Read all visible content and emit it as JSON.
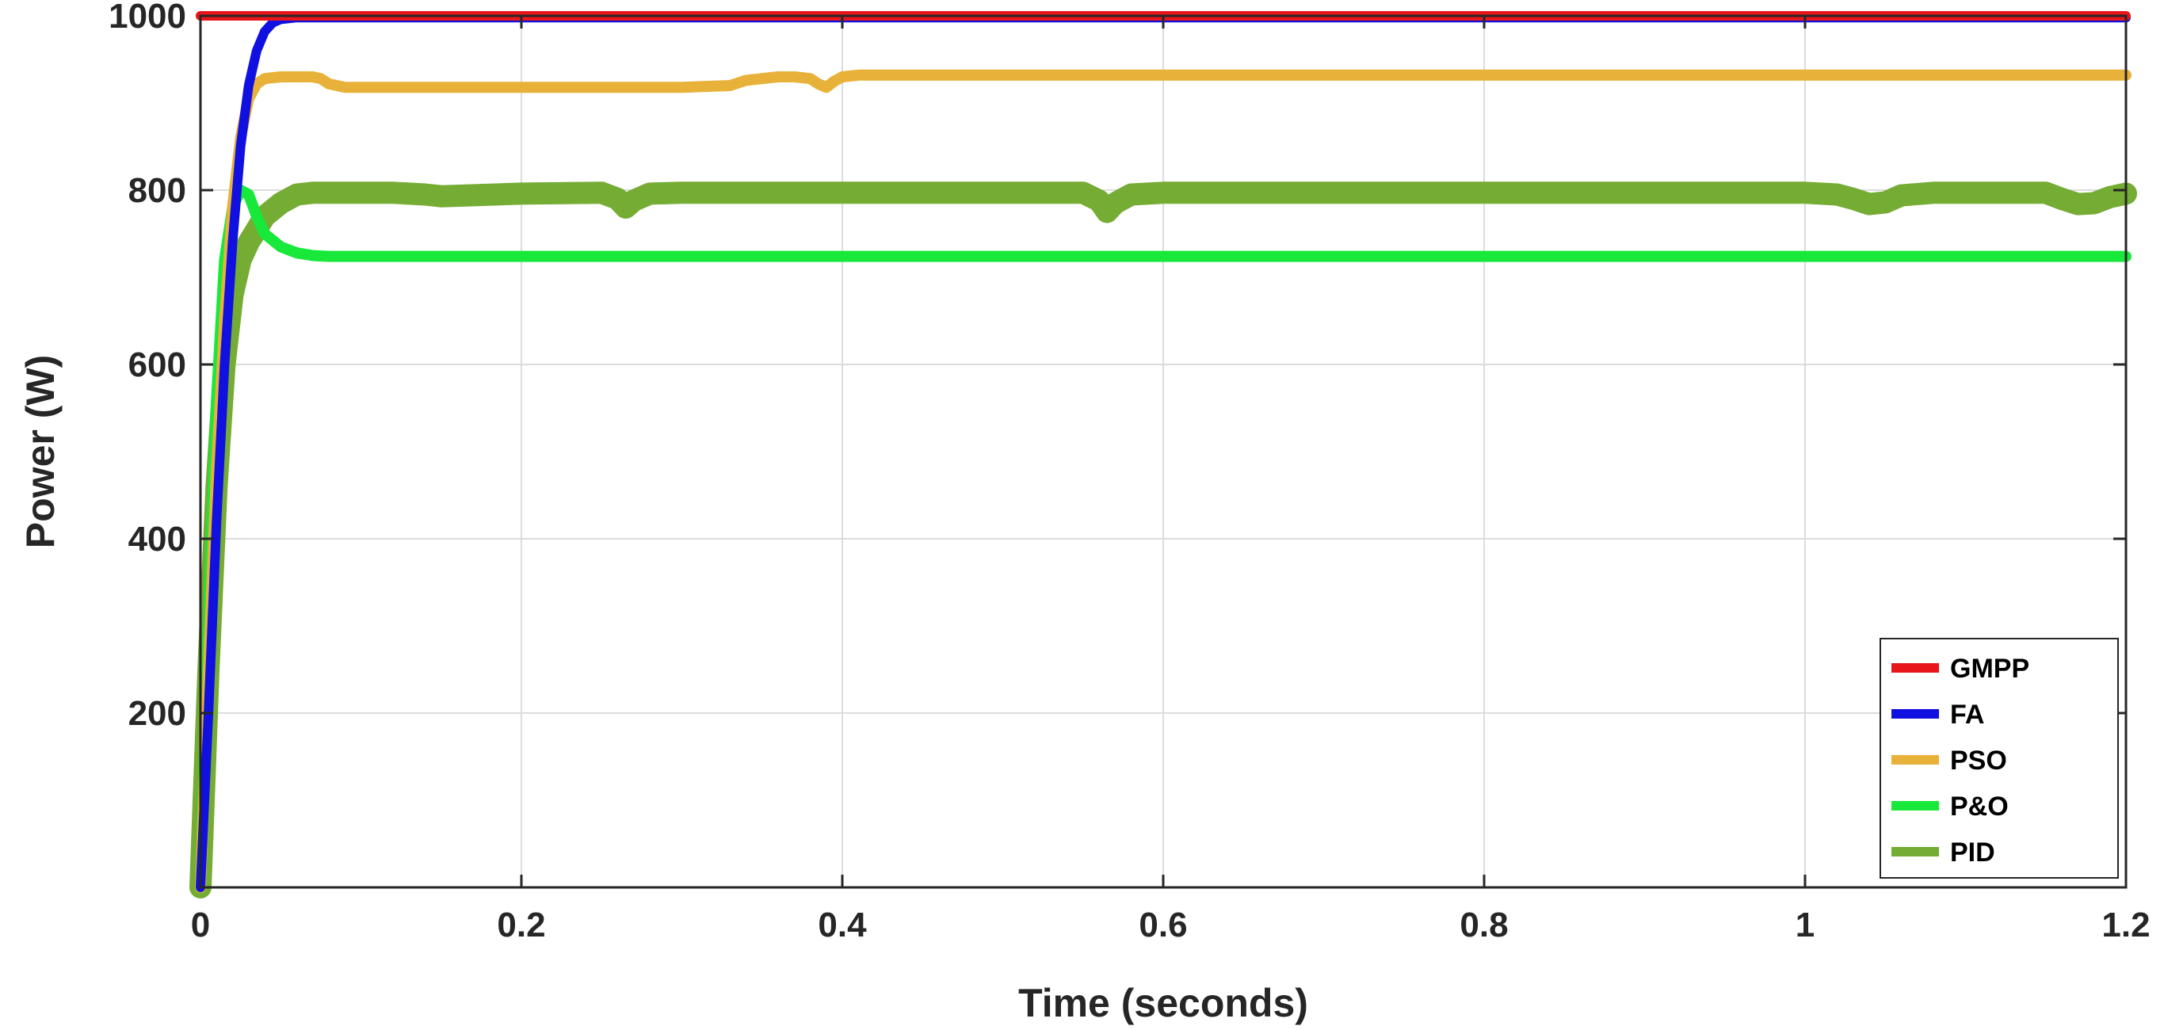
{
  "chart_data": {
    "type": "line",
    "title": "",
    "xlabel": "Time (seconds)",
    "ylabel": "Power (W)",
    "xlim": [
      0,
      1.2
    ],
    "ylim": [
      0,
      1000
    ],
    "xticks": [
      0,
      0.2,
      0.4,
      0.6,
      0.8,
      1,
      1.2
    ],
    "xtick_labels": [
      "0",
      "0.2",
      "0.4",
      "0.6",
      "0.8",
      "1",
      "1.2"
    ],
    "yticks": [
      200,
      400,
      600,
      800,
      1000
    ],
    "ytick_labels": [
      "200",
      "400",
      "600",
      "800",
      "1000"
    ],
    "grid": true,
    "legend_position": "bottom-right",
    "series": [
      {
        "name": "GMPP",
        "color": "#e8161b",
        "x": [
          0,
          0.05,
          0.1,
          0.5,
          1.0,
          1.2
        ],
        "y": [
          1000,
          1000,
          1000,
          1000,
          1000,
          1000
        ]
      },
      {
        "name": "FA",
        "color": "#1010e0",
        "x": [
          0,
          0.005,
          0.01,
          0.015,
          0.02,
          0.025,
          0.03,
          0.035,
          0.04,
          0.045,
          0.05,
          0.06,
          0.08,
          0.2,
          0.5,
          0.8,
          1.0,
          1.2
        ],
        "y": [
          0,
          200,
          420,
          600,
          740,
          850,
          920,
          960,
          982,
          992,
          996,
          998,
          998,
          998,
          998,
          998,
          998,
          998
        ]
      },
      {
        "name": "PSO",
        "color": "#e8b23a",
        "x": [
          0,
          0.005,
          0.01,
          0.015,
          0.02,
          0.025,
          0.03,
          0.035,
          0.04,
          0.05,
          0.06,
          0.07,
          0.075,
          0.08,
          0.09,
          0.1,
          0.2,
          0.3,
          0.33,
          0.34,
          0.35,
          0.36,
          0.37,
          0.38,
          0.385,
          0.39,
          0.395,
          0.4,
          0.41,
          0.5,
          0.8,
          1.0,
          1.2
        ],
        "y": [
          0,
          250,
          480,
          650,
          780,
          860,
          905,
          922,
          928,
          930,
          930,
          930,
          928,
          922,
          918,
          918,
          918,
          918,
          920,
          926,
          928,
          930,
          930,
          928,
          922,
          918,
          925,
          930,
          932,
          932,
          932,
          932,
          932
        ]
      },
      {
        "name": "P&O",
        "color": "#18e83a",
        "x": [
          0,
          0.005,
          0.01,
          0.015,
          0.02,
          0.025,
          0.03,
          0.035,
          0.04,
          0.05,
          0.06,
          0.07,
          0.08,
          0.1,
          0.2,
          0.5,
          0.8,
          1.0,
          1.2
        ],
        "y": [
          0,
          300,
          560,
          720,
          780,
          800,
          795,
          770,
          750,
          735,
          728,
          725,
          724,
          724,
          724,
          724,
          724,
          724,
          724
        ]
      },
      {
        "name": "PID",
        "color": "#75ac33",
        "x": [
          0,
          0.005,
          0.01,
          0.015,
          0.02,
          0.025,
          0.03,
          0.04,
          0.05,
          0.06,
          0.07,
          0.08,
          0.1,
          0.12,
          0.14,
          0.15,
          0.2,
          0.25,
          0.26,
          0.265,
          0.27,
          0.28,
          0.3,
          0.4,
          0.5,
          0.55,
          0.56,
          0.565,
          0.57,
          0.58,
          0.6,
          0.8,
          1.0,
          1.02,
          1.03,
          1.04,
          1.05,
          1.06,
          1.08,
          1.1,
          1.15,
          1.16,
          1.17,
          1.18,
          1.19,
          1.2
        ],
        "y": [
          0,
          250,
          460,
          600,
          680,
          720,
          740,
          770,
          785,
          795,
          797,
          797,
          797,
          797,
          795,
          793,
          796,
          797,
          790,
          780,
          788,
          796,
          797,
          797,
          797,
          797,
          788,
          775,
          785,
          795,
          797,
          797,
          797,
          795,
          790,
          784,
          786,
          794,
          797,
          797,
          797,
          790,
          784,
          785,
          792,
          796
        ]
      }
    ]
  }
}
